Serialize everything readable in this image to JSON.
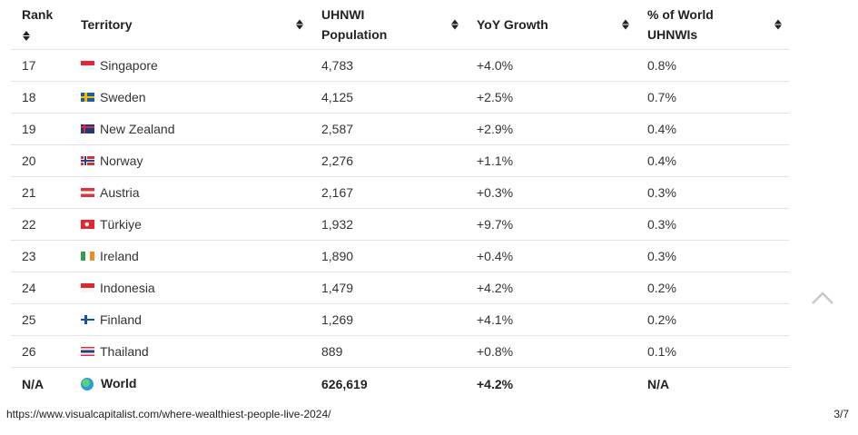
{
  "table": {
    "headers": {
      "rank": "Rank",
      "territory": "Territory",
      "population": "UHNWI Population",
      "yoy": "YoY Growth",
      "pct": "% of World UHNWIs"
    },
    "rows": [
      {
        "rank": "17",
        "territory": "Singapore",
        "flag": "singapore-flag",
        "population": "4,783",
        "yoy": "+4.0%",
        "pct": "0.8%"
      },
      {
        "rank": "18",
        "territory": "Sweden",
        "flag": "sweden-flag",
        "population": "4,125",
        "yoy": "+2.5%",
        "pct": "0.7%"
      },
      {
        "rank": "19",
        "territory": "New Zealand",
        "flag": "new-zealand-flag",
        "population": "2,587",
        "yoy": "+2.9%",
        "pct": "0.4%"
      },
      {
        "rank": "20",
        "territory": "Norway",
        "flag": "norway-flag",
        "population": "2,276",
        "yoy": "+1.1%",
        "pct": "0.4%"
      },
      {
        "rank": "21",
        "territory": "Austria",
        "flag": "austria-flag",
        "population": "2,167",
        "yoy": "+0.3%",
        "pct": "0.3%"
      },
      {
        "rank": "22",
        "territory": "Türkiye",
        "flag": "turkiye-flag",
        "population": "1,932",
        "yoy": "+9.7%",
        "pct": "0.3%"
      },
      {
        "rank": "23",
        "territory": "Ireland",
        "flag": "ireland-flag",
        "population": "1,890",
        "yoy": "+0.4%",
        "pct": "0.3%"
      },
      {
        "rank": "24",
        "territory": "Indonesia",
        "flag": "indonesia-flag",
        "population": "1,479",
        "yoy": "+4.2%",
        "pct": "0.2%"
      },
      {
        "rank": "25",
        "territory": "Finland",
        "flag": "finland-flag",
        "population": "1,269",
        "yoy": "+4.1%",
        "pct": "0.2%"
      },
      {
        "rank": "26",
        "territory": "Thailand",
        "flag": "thailand-flag",
        "population": "889",
        "yoy": "+0.8%",
        "pct": "0.1%"
      }
    ],
    "total": {
      "rank": "N/A",
      "territory": "World",
      "icon": "globe-icon",
      "population": "626,619",
      "yoy": "+4.2%",
      "pct": "N/A"
    }
  },
  "footer": {
    "url": "https://www.visualcapitalist.com/where-wealthiest-people-live-2024/",
    "page": "3/7"
  },
  "icons": {
    "sort": "sort-icon",
    "scroll_top": "chevron-up-icon"
  }
}
